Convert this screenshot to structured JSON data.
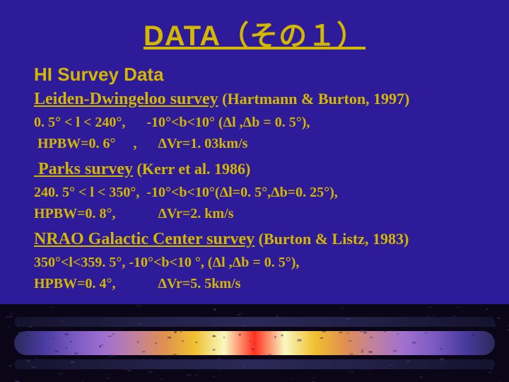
{
  "title": "DATA（その１）",
  "heading": "HI Survey Data",
  "surveys": [
    {
      "name": "Leiden-Dwingeloo survey",
      "ref": " (Hartmann & Burton, 1997)",
      "line1": "0. 5° < l < 240°,      -10°<b<10° (Δl ,Δb = 0. 5°),",
      "line2": " HPBW=0. 6°     ,      ΔVr=1. 03km/s"
    },
    {
      "name": " Parks survey",
      "ref": " (Kerr et al. 1986)",
      "line1": "240. 5° < l < 350°,  -10°<b<10°(Δl=0. 5°,Δb=0. 25°),",
      "line2": "HPBW=0. 8°,            ΔVr=2. km/s"
    },
    {
      "name": "NRAO Galactic Center survey",
      "ref": " (Burton & Listz, 1983)",
      "line1": "350°<l<359. 5°, -10°<b<10 °, (Δl ,Δb = 0. 5°),",
      "line2": "HPBW=0. 4°,            ΔVr=5. 5km/s"
    }
  ],
  "spectral": {
    "background": "#0a0618",
    "bands": [
      {
        "y": 38,
        "h": 34,
        "colors": [
          "#2a2a5a",
          "#4a3aa0",
          "#7a5ac0",
          "#a070d0",
          "#c080a0",
          "#e09050",
          "#f0c030",
          "#f8f8c0",
          "#ff3020",
          "#f8f8c0",
          "#f0c030",
          "#e09050",
          "#c080a0",
          "#a070d0",
          "#7a5ac0",
          "#4a3aa0",
          "#2a2a5a"
        ]
      },
      {
        "y": 18,
        "h": 14,
        "colors": [
          "#1a1a3a",
          "#303060",
          "#404080",
          "#303060",
          "#1a1a3a"
        ]
      },
      {
        "y": 78,
        "h": 14,
        "colors": [
          "#1a1a3a",
          "#303060",
          "#404080",
          "#303060",
          "#1a1a3a"
        ]
      }
    ]
  }
}
